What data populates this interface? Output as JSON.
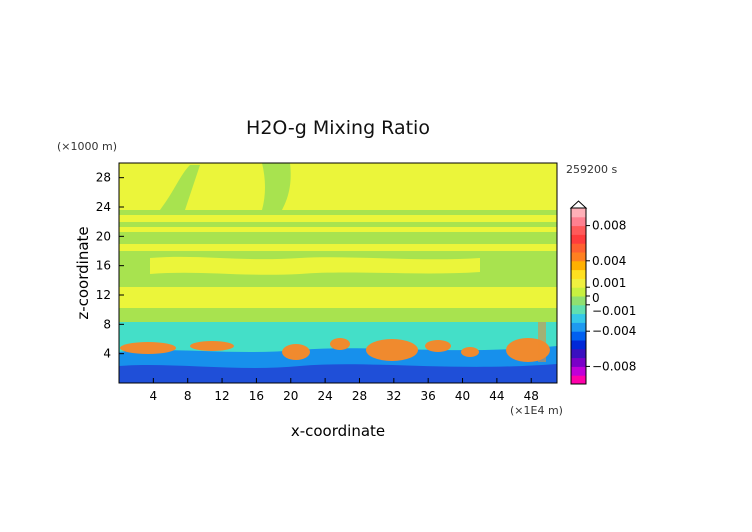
{
  "chart_data": {
    "type": "heatmap",
    "title": "H2O-g Mixing Ratio",
    "xlabel": "x-coordinate",
    "ylabel": "z-coordinate",
    "x_unit_label": "(×1E4 m)",
    "y_unit_label": "(×1000 m)",
    "time_label": "259200 s",
    "xlim": [
      0,
      51
    ],
    "ylim": [
      0,
      30
    ],
    "x_ticks": [
      "4",
      "8",
      "12",
      "16",
      "20",
      "24",
      "28",
      "32",
      "36",
      "40",
      "44",
      "48"
    ],
    "x_tick_values": [
      4,
      8,
      12,
      16,
      20,
      24,
      28,
      32,
      36,
      40,
      44,
      48
    ],
    "y_ticks": [
      "4",
      "8",
      "12",
      "16",
      "20",
      "24",
      "28"
    ],
    "y_tick_values": [
      4,
      8,
      12,
      16,
      20,
      24,
      28
    ],
    "colorbar": {
      "range": [
        -0.01,
        0.01
      ],
      "labels": [
        "0.008",
        "0.004",
        "0.001",
        "0",
        "−0.001",
        "−0.004",
        "−0.008"
      ],
      "label_values": [
        0.008,
        0.004,
        0.001,
        0,
        -0.001,
        -0.004,
        -0.008
      ],
      "colors": [
        "#ff00aa",
        "#c000d8",
        "#7a00c8",
        "#3a10c0",
        "#0028d8",
        "#0060f0",
        "#1e9af0",
        "#35c8e8",
        "#60e0b0",
        "#90e070",
        "#c8f040",
        "#f0f040",
        "#ffe020",
        "#ffb000",
        "#ff8020",
        "#ff6030",
        "#ff3c3c",
        "#ff5a5a",
        "#ff8090",
        "#ffb0b8"
      ]
    },
    "field_colors": {
      "yellow": "#ebf53a",
      "green": "#a8e34f",
      "cyan": "#44dfc8",
      "blue": "#1790ec",
      "darkblue": "#1f4fd8",
      "orange": "#f08a2e"
    }
  }
}
